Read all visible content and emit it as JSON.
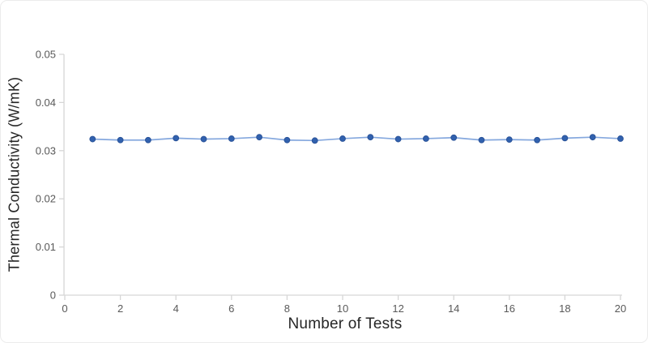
{
  "chart_data": {
    "type": "line",
    "title": "",
    "xlabel": "Number of Tests",
    "ylabel": "Thermal Conductivity (W/mK)",
    "x": [
      1,
      2,
      3,
      4,
      5,
      6,
      7,
      8,
      9,
      10,
      11,
      12,
      13,
      14,
      15,
      16,
      17,
      18,
      19,
      20
    ],
    "values": [
      0.0324,
      0.0322,
      0.0322,
      0.0326,
      0.0324,
      0.0325,
      0.0328,
      0.0322,
      0.0321,
      0.0325,
      0.0328,
      0.0324,
      0.0325,
      0.0327,
      0.0322,
      0.0323,
      0.0322,
      0.0326,
      0.0328,
      0.0325
    ],
    "xlim": [
      0,
      20
    ],
    "ylim": [
      0,
      0.05
    ],
    "x_ticks": [
      0,
      2,
      4,
      6,
      8,
      10,
      12,
      14,
      16,
      18,
      20
    ],
    "x_tick_labels": [
      "0",
      "2",
      "4",
      "6",
      "8",
      "10",
      "12",
      "14",
      "16",
      "18",
      "20"
    ],
    "y_ticks": [
      0,
      0.01,
      0.02,
      0.03,
      0.04,
      0.05
    ],
    "y_tick_labels": [
      "0",
      "0.01",
      "0.02",
      "0.03",
      "0.04",
      "0.05"
    ],
    "grid": false,
    "legend": "none",
    "marker": "circle"
  },
  "colors": {
    "marker_fill": "#3161ae",
    "marker_border": "#2a5399",
    "line": "#85a8de",
    "axis": "#d6d6d6",
    "tick_label": "#595959",
    "axis_title": "#262626",
    "card_border": "#ececec",
    "background": "#ffffff"
  }
}
